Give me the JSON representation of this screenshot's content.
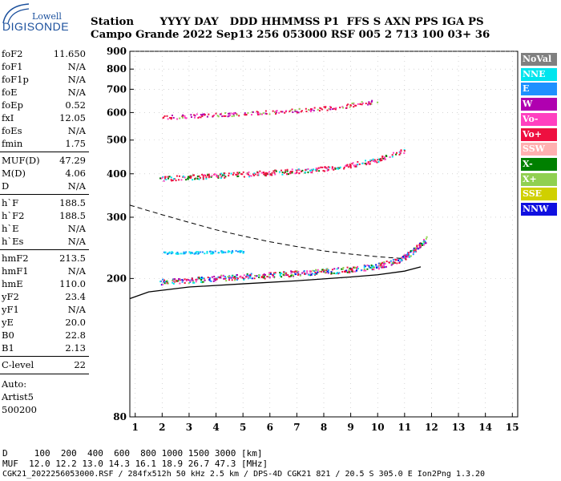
{
  "logo": {
    "top": "Lowell",
    "main": "DIGISONDE"
  },
  "header": {
    "row1": "Station       YYYY DAY   DDD HHMMSS P1  FFS S AXN PPS IGA PS",
    "row2": "Campo Grande 2022 Sep13 256 053000 RSF 005 2 713 100 03+ 36"
  },
  "params": [
    {
      "name": "foF2",
      "value": "11.650"
    },
    {
      "name": "foF1",
      "value": "N/A"
    },
    {
      "name": "foF1p",
      "value": "N/A"
    },
    {
      "name": "foE",
      "value": "N/A"
    },
    {
      "name": "foEp",
      "value": "0.52"
    },
    {
      "name": "fxI",
      "value": "12.05"
    },
    {
      "name": "foEs",
      "value": "N/A"
    },
    {
      "name": "fmin",
      "value": "1.75"
    },
    {
      "name": "MUF(D)",
      "value": "47.29"
    },
    {
      "name": "M(D)",
      "value": "4.06"
    },
    {
      "name": "D",
      "value": "N/A"
    },
    {
      "name": "h`F",
      "value": "188.5"
    },
    {
      "name": "h`F2",
      "value": "188.5"
    },
    {
      "name": "h`E",
      "value": "N/A"
    },
    {
      "name": "h`Es",
      "value": "N/A"
    },
    {
      "name": "hmF2",
      "value": "213.5"
    },
    {
      "name": "hmF1",
      "value": "N/A"
    },
    {
      "name": "hmE",
      "value": "110.0"
    },
    {
      "name": "yF2",
      "value": "23.4"
    },
    {
      "name": "yF1",
      "value": "N/A"
    },
    {
      "name": "yE",
      "value": "20.0"
    },
    {
      "name": "B0",
      "value": "22.8"
    },
    {
      "name": "B1",
      "value": "2.13"
    },
    {
      "name": "C-level",
      "value": "22"
    }
  ],
  "autoscale": {
    "line1": "Auto:",
    "line2": "Artist5",
    "line3": "500200"
  },
  "legend": [
    {
      "label": "NoVal",
      "color": "#808080"
    },
    {
      "label": "NNE",
      "color": "#00e5ee"
    },
    {
      "label": "E",
      "color": "#1e90ff"
    },
    {
      "label": "W",
      "color": "#b000b0"
    },
    {
      "label": "Vo-",
      "color": "#ff40c0"
    },
    {
      "label": "Vo+",
      "color": "#ee1040"
    },
    {
      "label": "SSW",
      "color": "#ffb0b0"
    },
    {
      "label": "X-",
      "color": "#008000"
    },
    {
      "label": "X+",
      "color": "#90d050"
    },
    {
      "label": "SSE",
      "color": "#d0d000"
    },
    {
      "label": "NNW",
      "color": "#1010e0"
    }
  ],
  "footer": {
    "line1": "D     100  200  400  600  800 1000 1500 3000 [km]",
    "line2": "MUF  12.0 12.2 13.0 14.3 16.1 18.9 26.7 47.3 [MHz]",
    "line3": "CGK21_2022256053000.RSF / 284fx512h 50 kHz 2.5 km / DPS-4D CGK21 821 / 20.5 S 305.0 E Ion2Png 1.3.20"
  },
  "chart_data": {
    "type": "scatter",
    "xlabel": "",
    "ylabel": "",
    "xlim": [
      0.8,
      15.2
    ],
    "ylim": [
      80,
      900
    ],
    "y_scale": "log",
    "xticks": [
      1,
      2,
      3,
      4,
      5,
      6,
      7,
      8,
      9,
      10,
      11,
      12,
      13,
      14,
      15
    ],
    "yticks": [
      80,
      200,
      300,
      400,
      500,
      600,
      700,
      800,
      900
    ],
    "traces": [
      {
        "name": "F2 first hop",
        "points": [
          [
            1.9,
            196
          ],
          [
            3,
            198
          ],
          [
            4,
            201
          ],
          [
            5,
            203
          ],
          [
            6,
            205
          ],
          [
            7,
            208
          ],
          [
            8,
            210
          ],
          [
            9,
            213
          ],
          [
            10,
            218
          ],
          [
            10.8,
            226
          ],
          [
            11.3,
            240
          ],
          [
            11.8,
            260
          ]
        ]
      },
      {
        "name": "F2 second hop",
        "points": [
          [
            1.9,
            388
          ],
          [
            3,
            392
          ],
          [
            4,
            396
          ],
          [
            5,
            400
          ],
          [
            6,
            404
          ],
          [
            7,
            409
          ],
          [
            8,
            415
          ],
          [
            9,
            425
          ],
          [
            10,
            440
          ],
          [
            11,
            468
          ]
        ]
      },
      {
        "name": "F2 third hop",
        "points": [
          [
            2,
            583
          ],
          [
            3,
            588
          ],
          [
            4,
            593
          ],
          [
            5,
            598
          ],
          [
            6,
            603
          ],
          [
            7,
            610
          ],
          [
            8,
            618
          ],
          [
            9,
            632
          ],
          [
            10,
            650
          ]
        ]
      },
      {
        "name": "Upper echo band",
        "points": [
          [
            2,
            238
          ],
          [
            3,
            238
          ],
          [
            4,
            239
          ],
          [
            5,
            240
          ]
        ]
      }
    ],
    "profile_solid": [
      [
        0.8,
        175
      ],
      [
        1.5,
        183
      ],
      [
        3,
        189
      ],
      [
        5,
        193
      ],
      [
        7,
        197
      ],
      [
        9,
        202
      ],
      [
        10,
        205
      ],
      [
        11,
        210
      ],
      [
        11.6,
        216
      ]
    ],
    "profile_dashed": [
      [
        0.8,
        325
      ],
      [
        2,
        305
      ],
      [
        3,
        290
      ],
      [
        4,
        276
      ],
      [
        5,
        265
      ],
      [
        6,
        255
      ],
      [
        7,
        247
      ],
      [
        8,
        240
      ],
      [
        9,
        235
      ],
      [
        10,
        231
      ],
      [
        11,
        228
      ]
    ]
  }
}
